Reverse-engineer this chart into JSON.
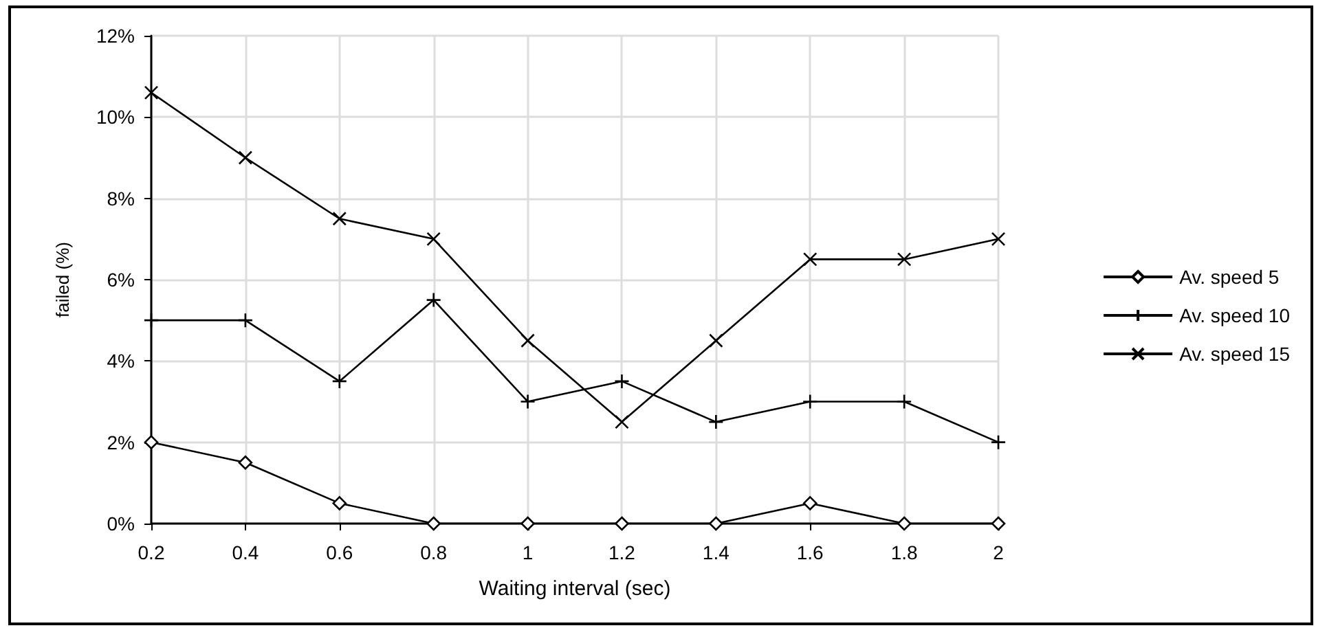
{
  "chart_data": {
    "type": "line",
    "xlabel": "Waiting interval (sec)",
    "ylabel": "failed (%)",
    "x": [
      0.2,
      0.4,
      0.6,
      0.8,
      1,
      1.2,
      1.4,
      1.6,
      1.8,
      2
    ],
    "series": [
      {
        "name": "Av. speed 5",
        "color": "#000000",
        "marker": "diamond",
        "values": [
          2,
          1.5,
          0.5,
          0,
          0,
          0,
          0,
          0.5,
          0,
          0
        ]
      },
      {
        "name": "Av. speed 10",
        "color": "#000000",
        "marker": "cross",
        "values": [
          5,
          5,
          3.5,
          5.5,
          3,
          3.5,
          2.5,
          3,
          3,
          2
        ]
      },
      {
        "name": "Av. speed 15",
        "color": "#000000",
        "marker": "x",
        "values": [
          10.6,
          9,
          7.5,
          7,
          4.5,
          2.5,
          4.5,
          6.5,
          6.5,
          7
        ]
      }
    ],
    "xlim": [
      0.2,
      2
    ],
    "xticks": [
      0.2,
      0.4,
      0.6,
      0.8,
      1,
      1.2,
      1.4,
      1.6,
      1.8,
      2
    ],
    "ylim": [
      0,
      12
    ],
    "yticks": [
      {
        "value": 0,
        "label": "0%"
      },
      {
        "value": 2,
        "label": "2%"
      },
      {
        "value": 4,
        "label": "4%"
      },
      {
        "value": 6,
        "label": "6%"
      },
      {
        "value": 8,
        "label": "8%"
      },
      {
        "value": 10,
        "label": "10%"
      },
      {
        "value": 12,
        "label": "12%"
      }
    ],
    "grid": true,
    "legend": "right",
    "line_style": "solid"
  }
}
